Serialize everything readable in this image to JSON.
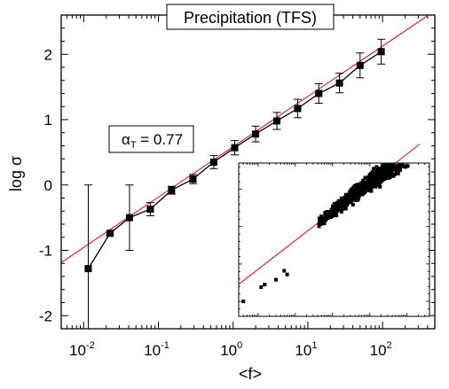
{
  "chart_data": {
    "type": "scatter",
    "title": "Precipitation (TFS)",
    "xlabel": "<f>",
    "ylabel": "log σ",
    "xscale": "log",
    "xlim": [
      0.005,
      500
    ],
    "ylim": [
      -2.2,
      2.6
    ],
    "x_ticks": [
      {
        "base": "10",
        "exp": "-2",
        "value": 0.01
      },
      {
        "base": "10",
        "exp": "-1",
        "value": 0.1
      },
      {
        "base": "10",
        "exp": "0",
        "value": 1
      },
      {
        "base": "10",
        "exp": "1",
        "value": 10
      },
      {
        "base": "10",
        "exp": "2",
        "value": 100
      }
    ],
    "y_ticks": [
      "-2",
      "-1",
      "0",
      "1",
      "2"
    ],
    "y_tick_values": [
      -2,
      -1,
      0,
      1,
      2
    ],
    "annotation": {
      "symbol": "α",
      "subscript": "T",
      "rest": " = 0.77"
    },
    "series": [
      {
        "style": "black squares with line and error bars",
        "color": "#000000",
        "points": [
          {
            "x": 0.0115,
            "y": -1.28,
            "err_hi": 1.28,
            "err_lo": 0.92
          },
          {
            "x": 0.0225,
            "y": -0.74,
            "err_hi": 0.03,
            "err_lo": 0.03
          },
          {
            "x": 0.041,
            "y": -0.5,
            "err_hi": 0.5,
            "err_lo": 0.5
          },
          {
            "x": 0.078,
            "y": -0.37,
            "err_hi": 0.1,
            "err_lo": 0.1
          },
          {
            "x": 0.15,
            "y": -0.08,
            "err_hi": 0.06,
            "err_lo": 0.06
          },
          {
            "x": 0.29,
            "y": 0.09,
            "err_hi": 0.07,
            "err_lo": 0.07
          },
          {
            "x": 0.55,
            "y": 0.35,
            "err_hi": 0.1,
            "err_lo": 0.1
          },
          {
            "x": 1.05,
            "y": 0.57,
            "err_hi": 0.11,
            "err_lo": 0.11
          },
          {
            "x": 2.0,
            "y": 0.78,
            "err_hi": 0.12,
            "err_lo": 0.12
          },
          {
            "x": 3.85,
            "y": 0.98,
            "err_hi": 0.13,
            "err_lo": 0.13
          },
          {
            "x": 7.3,
            "y": 1.17,
            "err_hi": 0.14,
            "err_lo": 0.14
          },
          {
            "x": 14.0,
            "y": 1.4,
            "err_hi": 0.15,
            "err_lo": 0.15
          },
          {
            "x": 26.5,
            "y": 1.56,
            "err_hi": 0.15,
            "err_lo": 0.15
          },
          {
            "x": 50.0,
            "y": 1.83,
            "err_hi": 0.19,
            "err_lo": 0.19
          },
          {
            "x": 96.0,
            "y": 2.04,
            "err_hi": 0.19,
            "err_lo": 0.19
          }
        ]
      }
    ],
    "fit_line": {
      "color": "#e8000b",
      "slope": 0.77,
      "intercept": 0.585
    },
    "inset": {
      "type": "scatter",
      "style": "dense black squares with red fit line",
      "xlim": [
        0.003,
        400
      ],
      "ylim": [
        -2.4,
        1.7
      ],
      "xscale": "log",
      "fit_slope": 0.77,
      "fit_intercept": 0.4,
      "cloud_x_range": [
        0.4,
        150
      ],
      "outlier_points": [
        {
          "x": 0.004,
          "y": -2.0
        },
        {
          "x": 0.012,
          "y": -1.62
        },
        {
          "x": 0.015,
          "y": -1.55
        },
        {
          "x": 0.03,
          "y": -1.42
        },
        {
          "x": 0.05,
          "y": -1.18
        },
        {
          "x": 0.06,
          "y": -1.28
        }
      ]
    }
  }
}
